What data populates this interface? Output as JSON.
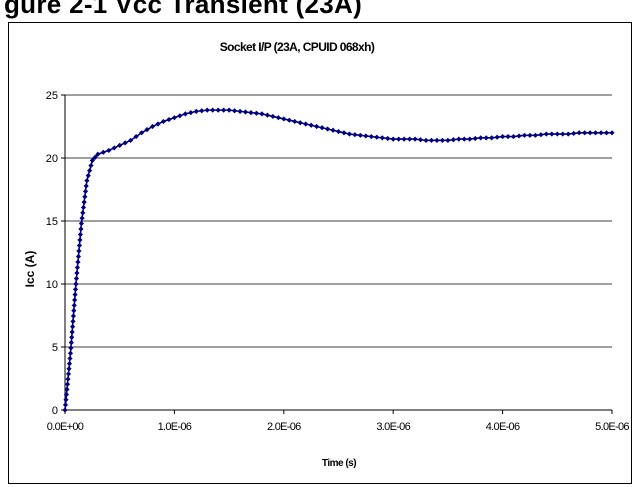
{
  "page": {
    "heading": "gure 2-1 Vcc Transient (23A)"
  },
  "chart_data": {
    "type": "line",
    "title": "Socket I/P (23A, CPUID 068xh)",
    "xlabel": "Time (s)",
    "ylabel": "Icc (A)",
    "xlim": [
      0,
      5e-06
    ],
    "ylim": [
      0,
      25
    ],
    "x_ticks": [
      0,
      1e-06,
      2e-06,
      3e-06,
      4e-06,
      5e-06
    ],
    "x_tick_labels": [
      "0.0E+00",
      "1.0E-06",
      "2.0E-06",
      "3.0E-06",
      "4.0E-06",
      "5.0E-06"
    ],
    "y_ticks": [
      0,
      5,
      10,
      15,
      20,
      25
    ],
    "y_tick_labels": [
      "0",
      "5",
      "10",
      "15",
      "20",
      "25"
    ],
    "grid": "horizontal",
    "legend": "none",
    "series": [
      {
        "color": "#000080",
        "marker": "diamond",
        "x": [
          0,
          5e-08,
          1e-07,
          1.5e-07,
          2e-07,
          2.5e-07,
          3e-07,
          4e-07,
          5e-07,
          6e-07,
          7e-07,
          8e-07,
          9e-07,
          1e-06,
          1.1e-06,
          1.2e-06,
          1.3e-06,
          1.4e-06,
          1.5e-06,
          1.6e-06,
          1.7e-06,
          1.8e-06,
          1.9e-06,
          2e-06,
          2.1e-06,
          2.2e-06,
          2.3e-06,
          2.4e-06,
          2.5e-06,
          2.6e-06,
          2.7e-06,
          2.8e-06,
          2.9e-06,
          3e-06,
          3.1e-06,
          3.2e-06,
          3.3e-06,
          3.4e-06,
          3.5e-06,
          3.6e-06,
          3.7e-06,
          3.8e-06,
          3.9e-06,
          4e-06,
          4.1e-06,
          4.2e-06,
          4.3e-06,
          4.4e-06,
          4.5e-06,
          4.6e-06,
          4.7e-06,
          4.8e-06,
          4.9e-06,
          5e-06
        ],
        "y": [
          0,
          4.5,
          10,
          14.8,
          18.2,
          19.8,
          20.3,
          20.6,
          21,
          21.4,
          22,
          22.5,
          22.9,
          23.2,
          23.5,
          23.7,
          23.8,
          23.8,
          23.8,
          23.7,
          23.6,
          23.5,
          23.3,
          23.1,
          22.9,
          22.7,
          22.5,
          22.3,
          22.1,
          21.9,
          21.8,
          21.7,
          21.6,
          21.5,
          21.5,
          21.5,
          21.4,
          21.4,
          21.4,
          21.5,
          21.5,
          21.6,
          21.6,
          21.7,
          21.7,
          21.8,
          21.8,
          21.9,
          21.9,
          21.9,
          22,
          22,
          22,
          22
        ]
      }
    ]
  }
}
